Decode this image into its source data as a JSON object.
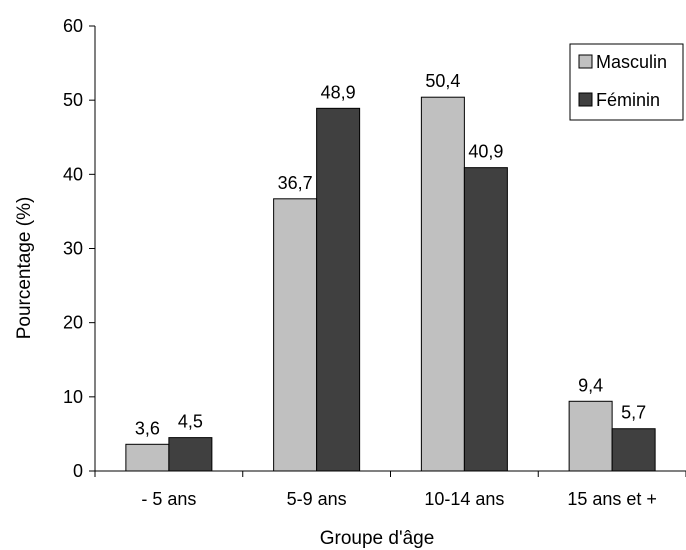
{
  "chart_data": {
    "type": "bar",
    "title": "",
    "xlabel": "Groupe d'âge",
    "ylabel": "Pourcentage (%)",
    "ylim": [
      0,
      60
    ],
    "yticks": [
      "0",
      "10",
      "20",
      "30",
      "40",
      "50",
      "60"
    ],
    "categories": [
      "- 5 ans",
      "5-9 ans",
      "10-14 ans",
      "15 ans et +"
    ],
    "series": [
      {
        "name": "Masculin",
        "color": "#c0c0c0",
        "values": [
          3.6,
          36.7,
          50.4,
          9.4
        ],
        "labels": [
          "3,6",
          "36,7",
          "50,4",
          "9,4"
        ]
      },
      {
        "name": "Féminin",
        "color": "#404040",
        "values": [
          4.5,
          48.9,
          40.9,
          5.7
        ],
        "labels": [
          "4,5",
          "48,9",
          "40,9",
          "5,7"
        ]
      }
    ],
    "grid": false,
    "legend_position": "top-right"
  }
}
